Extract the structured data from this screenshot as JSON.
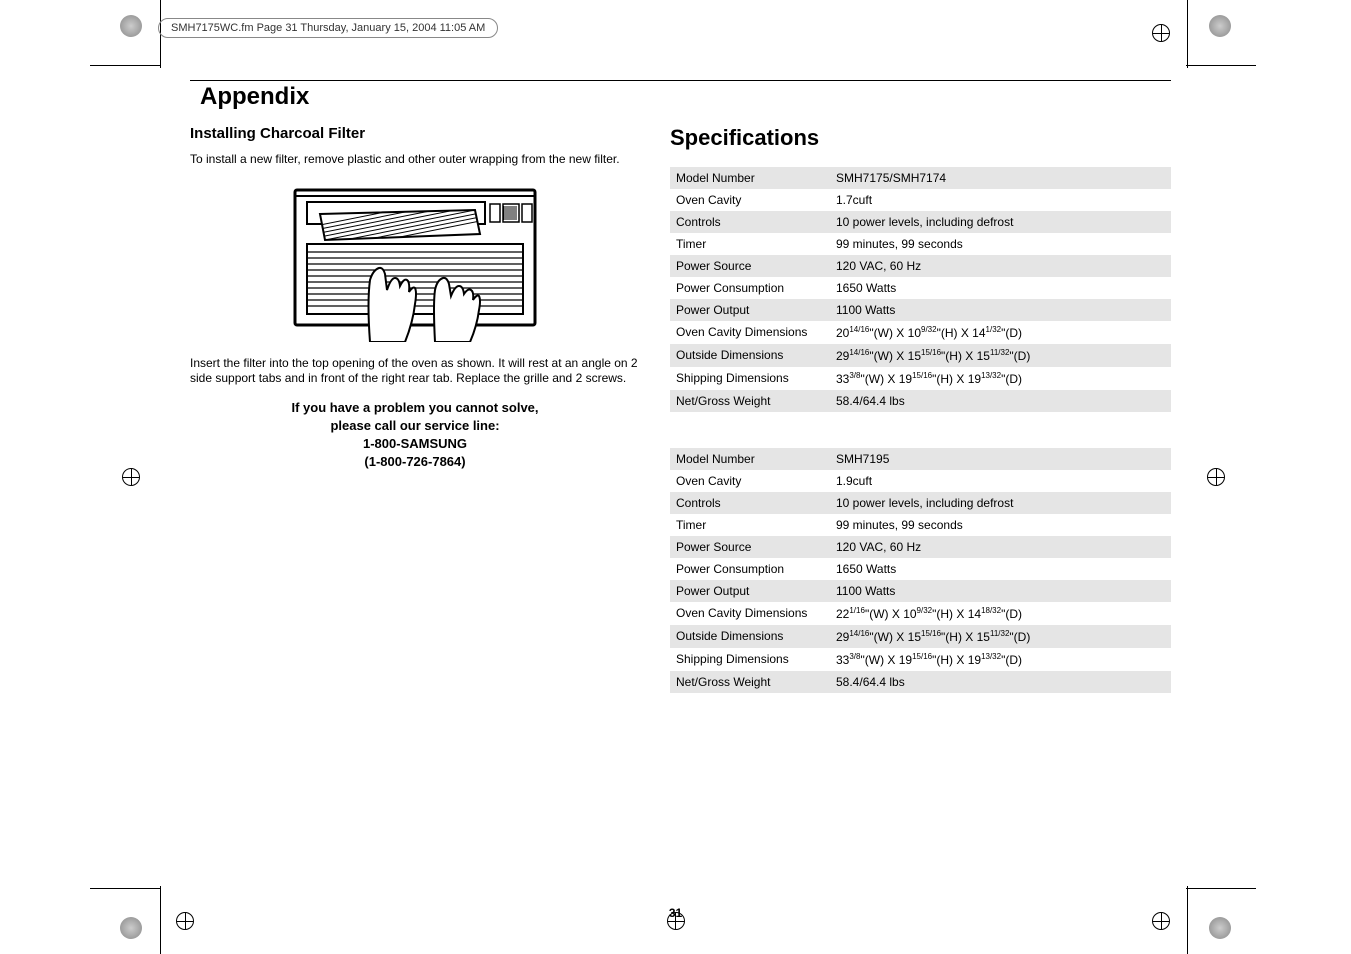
{
  "header": {
    "slugline": "SMH7175WC.fm  Page 31  Thursday, January 15, 2004  11:05 AM"
  },
  "appendix": {
    "title": "Appendix",
    "install_heading": "Installing Charcoal Filter",
    "install_text1": "To install a new filter, remove plastic and other outer wrapping from the new filter.",
    "install_text2": "Insert the filter into the top opening of the oven as shown. It will rest at an angle on 2 side support tabs and in front of the right rear tab. Replace the grille and 2 screws.",
    "service_line1": "If you have a problem you cannot solve,",
    "service_line2": "please call our service line:",
    "service_line3": "1-800-SAMSUNG",
    "service_line4": "(1-800-726-7864)"
  },
  "specifications": {
    "title": "Specifications"
  },
  "illustration": {
    "stroke_color": "#000000",
    "fill_color": "#ffffff",
    "hatch_spacing": 3
  },
  "spec_table1": {
    "row_bg_alt": "#e5e5e5",
    "rows": [
      {
        "label": "Model Number",
        "value_html": "SMH7175/SMH7174"
      },
      {
        "label": "Oven Cavity",
        "value_html": "1.7cuft"
      },
      {
        "label": "Controls",
        "value_html": "10 power levels, including defrost"
      },
      {
        "label": "Timer",
        "value_html": "99 minutes, 99 seconds"
      },
      {
        "label": "Power Source",
        "value_html": "120 VAC, 60 Hz"
      },
      {
        "label": "Power Consumption",
        "value_html": "1650 Watts"
      },
      {
        "label": "Power Output",
        "value_html": "1100 Watts"
      },
      {
        "label": "Oven Cavity Dimensions",
        "value_html": "20<sup>14/16</sup>\"(W) X 10<sup>9/32</sup>\"(H) X 14<sup>1/32</sup>\"(D)"
      },
      {
        "label": "Outside Dimensions",
        "value_html": "29<sup>14/16</sup>\"(W) X 15<sup>15/16</sup>\"(H) X 15<sup>11/32</sup>\"(D)"
      },
      {
        "label": "Shipping Dimensions",
        "value_html": "33<sup>3/8</sup>\"(W) X 19<sup>15/16</sup>\"(H) X 19<sup>13/32</sup>\"(D)"
      },
      {
        "label": "Net/Gross Weight",
        "value_html": "58.4/64.4 lbs"
      }
    ]
  },
  "spec_table2": {
    "row_bg_alt": "#e5e5e5",
    "rows": [
      {
        "label": "Model Number",
        "value_html": "SMH7195"
      },
      {
        "label": "Oven Cavity",
        "value_html": "1.9cuft"
      },
      {
        "label": "Controls",
        "value_html": "10 power levels, including defrost"
      },
      {
        "label": "Timer",
        "value_html": "99 minutes, 99 seconds"
      },
      {
        "label": "Power Source",
        "value_html": "120 VAC, 60 Hz"
      },
      {
        "label": "Power Consumption",
        "value_html": "1650 Watts"
      },
      {
        "label": "Power Output",
        "value_html": "1100 Watts"
      },
      {
        "label": "Oven Cavity Dimensions",
        "value_html": "22<sup>1/16</sup>\"(W) X 10<sup>9/32</sup>\"(H) X 14<sup>18/32</sup>\"(D)"
      },
      {
        "label": "Outside Dimensions",
        "value_html": "29<sup>14/16</sup>\"(W) X 15<sup>15/16</sup>\"(H) X 15<sup>11/32</sup>\"(D)"
      },
      {
        "label": "Shipping Dimensions",
        "value_html": "33<sup>3/8</sup>\"(W) X 19<sup>15/16</sup>\"(H) X 19<sup>13/32</sup>\"(D)"
      },
      {
        "label": "Net/Gross Weight",
        "value_html": "58.4/64.4 lbs"
      }
    ]
  },
  "page_number": "31"
}
